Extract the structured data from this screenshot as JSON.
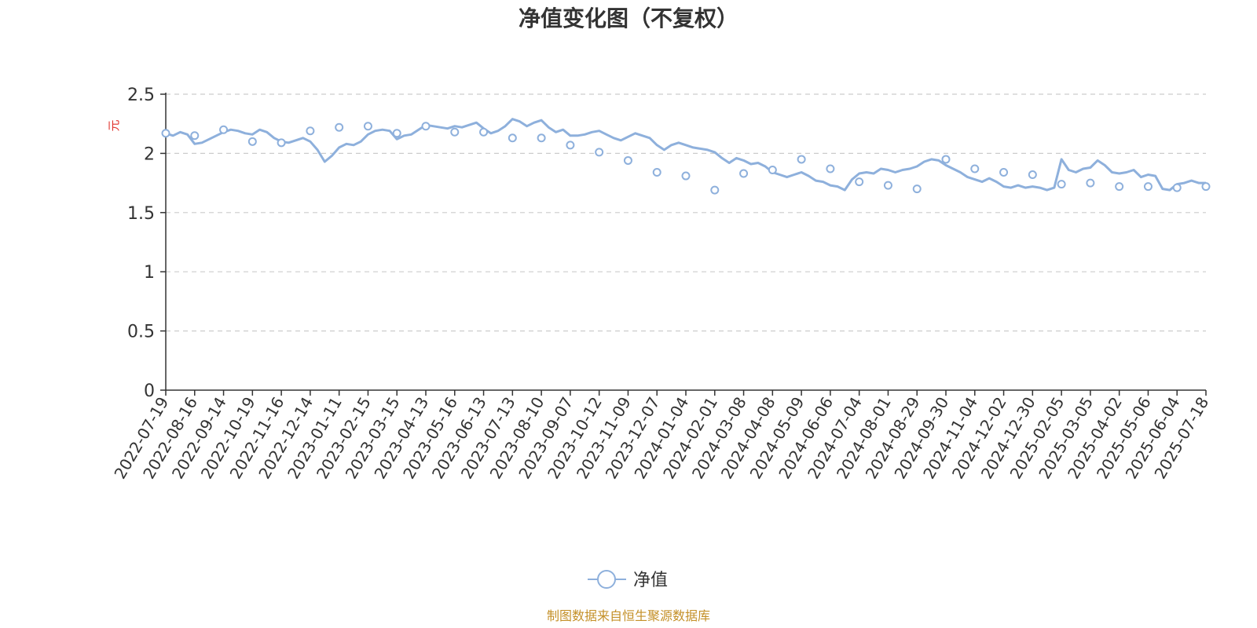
{
  "chart_data": {
    "type": "line",
    "title": "净值变化图（不复权）",
    "ylabel": "元",
    "ylim": [
      0,
      2.5
    ],
    "yticks": [
      "0",
      "0.5",
      "1",
      "1.5",
      "2",
      "2.5"
    ],
    "grid": "horizontal-dashed",
    "x_tick_labels": [
      "2022-07-19",
      "2022-08-16",
      "2022-09-14",
      "2022-10-19",
      "2022-11-16",
      "2022-12-14",
      "2023-01-11",
      "2023-02-15",
      "2023-03-15",
      "2023-04-13",
      "2023-05-16",
      "2023-06-13",
      "2023-07-13",
      "2023-08-10",
      "2023-09-07",
      "2023-10-12",
      "2023-11-09",
      "2023-12-07",
      "2024-01-04",
      "2024-02-01",
      "2024-03-08",
      "2024-04-08",
      "2024-05-09",
      "2024-06-06",
      "2024-07-04",
      "2024-08-01",
      "2024-08-29",
      "2024-09-30",
      "2024-11-04",
      "2024-12-02",
      "2024-12-30",
      "2025-02-05",
      "2025-03-05",
      "2025-04-02",
      "2025-05-06",
      "2025-06-04",
      "2025-07-18"
    ],
    "legend_position": "bottom",
    "series": [
      {
        "name": "净值",
        "color": "#8eb0dc",
        "marker_x": [
          "2022-07-19",
          "2022-08-16",
          "2022-09-14",
          "2022-10-19",
          "2022-11-16",
          "2022-12-14",
          "2023-01-11",
          "2023-02-15",
          "2023-03-15",
          "2023-04-13",
          "2023-05-16",
          "2023-06-13",
          "2023-07-13",
          "2023-08-10",
          "2023-09-07",
          "2023-10-12",
          "2023-11-09",
          "2023-12-07",
          "2024-01-04",
          "2024-02-01",
          "2024-03-08",
          "2024-04-08",
          "2024-05-09",
          "2024-06-06",
          "2024-07-04",
          "2024-08-01",
          "2024-08-29",
          "2024-09-30",
          "2024-11-04",
          "2024-12-02",
          "2024-12-30",
          "2025-02-05",
          "2025-03-05",
          "2025-04-02",
          "2025-05-06",
          "2025-06-04",
          "2025-07-18"
        ],
        "marker_values": [
          2.17,
          2.15,
          2.2,
          2.1,
          2.09,
          2.19,
          2.22,
          2.23,
          2.17,
          2.23,
          2.18,
          2.18,
          2.13,
          2.13,
          2.07,
          2.01,
          1.94,
          1.84,
          1.81,
          1.69,
          1.83,
          1.86,
          1.95,
          1.87,
          1.76,
          1.73,
          1.7,
          1.95,
          1.87,
          1.84,
          1.82,
          1.74,
          1.75,
          1.72,
          1.72,
          1.71,
          1.72
        ],
        "x": [
          0,
          1,
          2,
          3,
          4,
          5,
          6,
          7,
          8,
          9,
          10,
          11,
          12,
          13,
          14,
          15,
          16,
          17,
          18,
          19,
          20,
          21,
          22,
          23,
          24,
          25,
          26,
          27,
          28,
          29,
          30,
          31,
          32,
          33,
          34,
          35,
          36,
          37,
          38,
          39,
          40,
          41,
          42,
          43,
          44,
          45,
          46,
          47,
          48,
          49,
          50,
          51,
          52,
          53,
          54,
          55,
          56,
          57,
          58,
          59,
          60,
          61,
          62,
          63,
          64,
          65,
          66,
          67,
          68,
          69,
          70,
          71,
          72,
          73,
          74,
          75,
          76,
          77,
          78,
          79,
          80,
          81,
          82,
          83,
          84,
          85,
          86,
          87,
          88,
          89,
          90,
          91,
          92,
          93,
          94,
          95,
          96,
          97,
          98,
          99,
          100,
          101,
          102,
          103,
          104,
          105,
          106,
          107,
          108,
          109,
          110,
          111,
          112,
          113,
          114,
          115,
          116,
          117,
          118,
          119,
          120,
          121,
          122,
          123,
          124,
          125,
          126,
          127,
          128,
          129,
          130,
          131,
          132,
          133,
          134,
          135,
          136,
          137,
          138,
          139,
          140,
          141,
          142,
          143,
          144
        ],
        "values": [
          2.17,
          2.15,
          2.18,
          2.16,
          2.08,
          2.09,
          2.12,
          2.15,
          2.18,
          2.2,
          2.19,
          2.17,
          2.16,
          2.2,
          2.18,
          2.13,
          2.1,
          2.09,
          2.11,
          2.13,
          2.1,
          2.03,
          1.93,
          1.98,
          2.05,
          2.08,
          2.07,
          2.1,
          2.16,
          2.19,
          2.2,
          2.19,
          2.12,
          2.15,
          2.16,
          2.2,
          2.24,
          2.23,
          2.22,
          2.21,
          2.23,
          2.22,
          2.24,
          2.26,
          2.21,
          2.17,
          2.19,
          2.23,
          2.29,
          2.27,
          2.23,
          2.26,
          2.28,
          2.22,
          2.18,
          2.2,
          2.15,
          2.15,
          2.16,
          2.18,
          2.19,
          2.16,
          2.13,
          2.11,
          2.14,
          2.17,
          2.15,
          2.13,
          2.07,
          2.03,
          2.07,
          2.09,
          2.07,
          2.05,
          2.04,
          2.03,
          2.01,
          1.96,
          1.92,
          1.96,
          1.94,
          1.91,
          1.92,
          1.89,
          1.84,
          1.82,
          1.8,
          1.82,
          1.84,
          1.81,
          1.77,
          1.76,
          1.73,
          1.72,
          1.69,
          1.78,
          1.83,
          1.84,
          1.83,
          1.87,
          1.86,
          1.84,
          1.86,
          1.87,
          1.89,
          1.93,
          1.95,
          1.94,
          1.9,
          1.87,
          1.84,
          1.8,
          1.78,
          1.76,
          1.79,
          1.76,
          1.72,
          1.71,
          1.73,
          1.71,
          1.72,
          1.71,
          1.69,
          1.71,
          1.95,
          1.86,
          1.84,
          1.87,
          1.88,
          1.94,
          1.9,
          1.84,
          1.83,
          1.84,
          1.86,
          1.8,
          1.82,
          1.81,
          1.7,
          1.69,
          1.74,
          1.75,
          1.77,
          1.75,
          1.75
        ]
      }
    ]
  },
  "source_note": "制图数据来自恒生聚源数据库",
  "colors": {
    "line": "#8eb0dc",
    "ylabel": "#e0322b",
    "source": "#c49028",
    "grid": "#cccccc",
    "axis": "#333333"
  }
}
